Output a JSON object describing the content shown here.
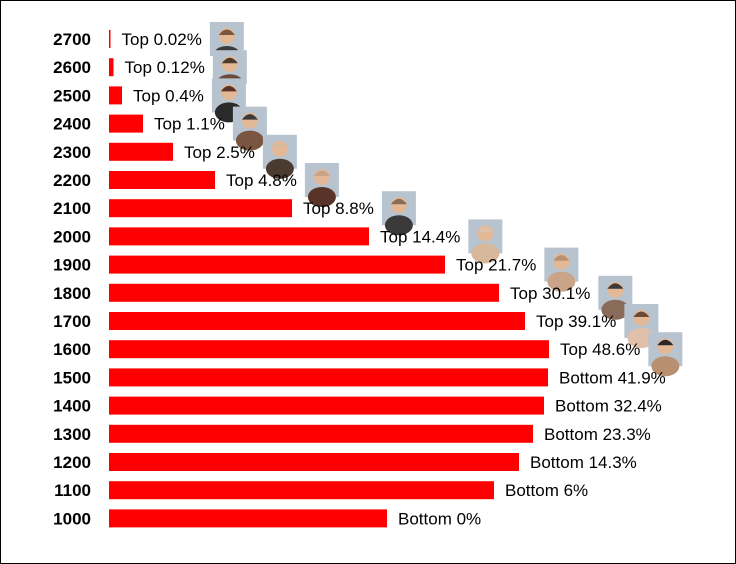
{
  "chart_data": {
    "type": "bar",
    "orientation": "horizontal",
    "bar_color": "#ff0000",
    "categories": [
      "2700",
      "2600",
      "2500",
      "2400",
      "2300",
      "2200",
      "2100",
      "2000",
      "1900",
      "1800",
      "1700",
      "1600",
      "1500",
      "1400",
      "1300",
      "1200",
      "1100",
      "1000"
    ],
    "values": [
      0.3,
      4.5,
      13,
      34,
      64,
      106,
      183,
      260,
      336,
      390,
      416,
      440,
      439,
      435,
      424,
      410,
      385,
      278
    ],
    "labels": [
      "Top 0.02%",
      "Top 0.12%",
      "Top 0.4%",
      "Top 1.1%",
      "Top 2.5%",
      "Top 4.8%",
      "Top 8.8%",
      "Top 14.4%",
      "Top 21.7%",
      "Top 30.1%",
      "Top 39.1%",
      "Top 48.6%",
      "Bottom 41.9%",
      "Bottom 32.4%",
      "Bottom 23.3%",
      "Bottom 14.3%",
      "Bottom 6%",
      "Bottom 0%"
    ],
    "avatar_rows": [
      "2700",
      "2600",
      "2500",
      "2400",
      "2300",
      "2200",
      "2100",
      "2000",
      "1900",
      "1800",
      "1700",
      "1600"
    ],
    "avatar_icon": "person-photo-icon",
    "xlim": [
      0,
      440
    ],
    "grid": false,
    "legend": "none"
  }
}
